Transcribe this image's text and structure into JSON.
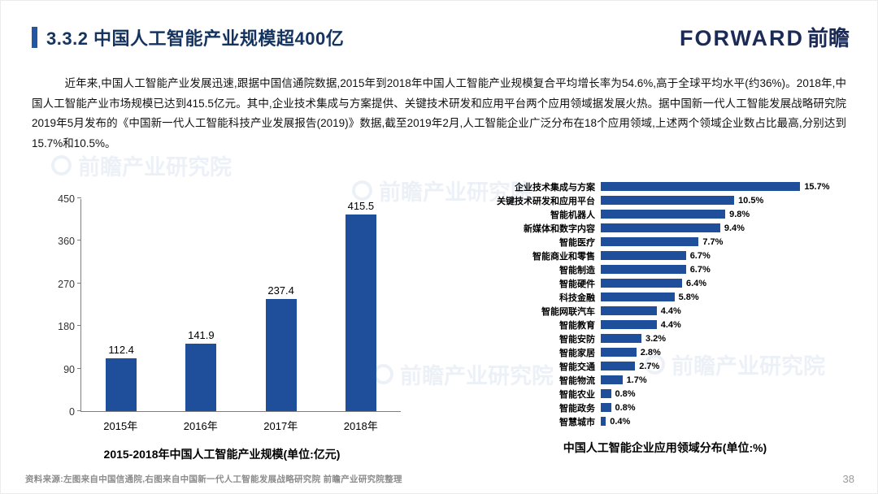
{
  "header": {
    "title": "3.3.2 中国人工智能产业规模超400亿",
    "logo": {
      "latin": "FORWARD",
      "cjk": "前瞻"
    }
  },
  "body": {
    "paragraph": "近年来,中国人工智能产业发展迅速,跟据中国信通院数据,2015年到2018年中国人工智能产业规模复合平均增长率为54.6%,高于全球平均水平(约36%)。2018年,中国人工智能产业市场规模已达到415.5亿元。其中,企业技术集成与方案提供、关键技术研发和应用平台两个应用领域据发展火热。据中国新一代人工智能发展战略研究院2019年5月发布的《中国新一代人工智能科技产业发展报告(2019)》数据,截至2019年2月,人工智能企业广泛分布在18个应用领域,上述两个领域企业数占比最高,分别达到15.7%和10.5%。"
  },
  "chart_data": [
    {
      "type": "bar",
      "orientation": "vertical",
      "title": "2015-2018年中国人工智能产业规模(单位:亿元)",
      "categories": [
        "2015年",
        "2016年",
        "2017年",
        "2018年"
      ],
      "values": [
        112.4,
        141.9,
        237.4,
        415.5
      ],
      "ylim": [
        0,
        450
      ],
      "yticks": [
        0,
        90,
        180,
        270,
        360,
        450
      ],
      "xlabel": "",
      "ylabel": "",
      "grid": false,
      "legend": false,
      "bar_color": "#1F4E9B"
    },
    {
      "type": "bar",
      "orientation": "horizontal",
      "title": "中国人工智能企业应用领域分布(单位:%)",
      "categories": [
        "企业技术集成与方案",
        "关键技术研发和应用平台",
        "智能机器人",
        "新媒体和数字内容",
        "智能医疗",
        "智能商业和零售",
        "智能制造",
        "智能硬件",
        "科技金融",
        "智能网联汽车",
        "智能教育",
        "智能安防",
        "智能家居",
        "智能交通",
        "智能物流",
        "智能农业",
        "智能政务",
        "智慧城市"
      ],
      "values": [
        15.7,
        10.5,
        9.8,
        9.4,
        7.7,
        6.7,
        6.7,
        6.4,
        5.8,
        4.4,
        4.4,
        3.2,
        2.8,
        2.7,
        1.7,
        0.8,
        0.8,
        0.4
      ],
      "value_suffix": "%",
      "xlim": [
        0,
        16
      ],
      "xlabel": "",
      "ylabel": "",
      "grid": false,
      "legend": false,
      "bar_color": "#1F4E9B"
    }
  ],
  "footer": {
    "source": "资料来源:左图来自中国信通院,右图来自中国新一代人工智能发展战略研究院 前瞻产业研究院整理",
    "page_number": "38"
  },
  "watermark": {
    "text": "前瞻产业研究院"
  },
  "colors": {
    "bar": "#1F4E9B",
    "title": "#14335F",
    "accent": "#2257A4"
  }
}
